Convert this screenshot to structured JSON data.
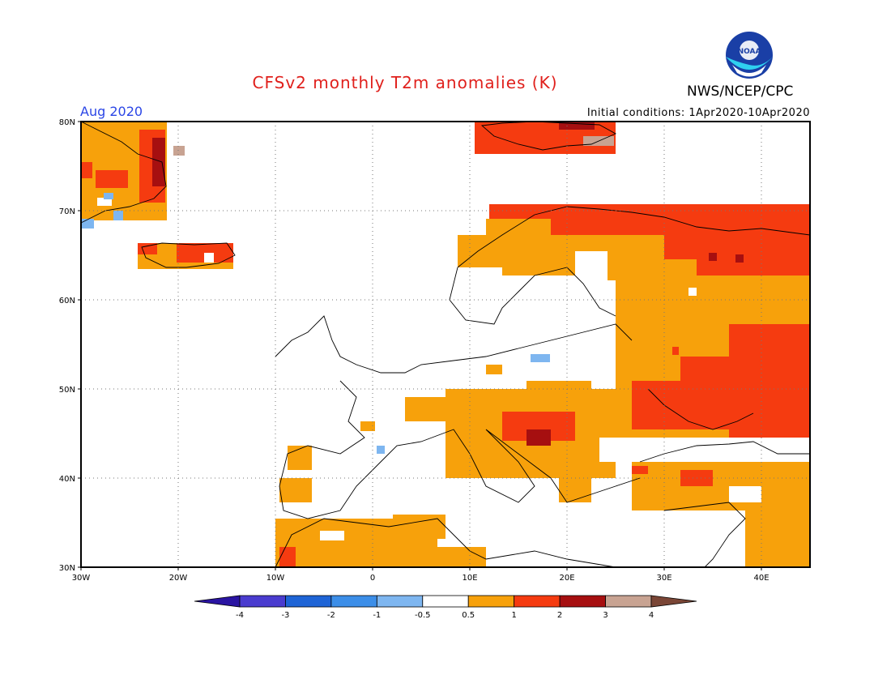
{
  "title": "CFSv2 monthly T2m anomalies (K)",
  "organization": "NWS/NCEP/CPC",
  "logo_text": "NOAA",
  "period": "Aug 2020",
  "initial_conditions": "Initial conditions: 1Apr2020-10Apr2020",
  "lat_labels": [
    "80N",
    "70N",
    "60N",
    "50N",
    "40N",
    "30N"
  ],
  "lon_labels": [
    "30W",
    "20W",
    "10W",
    "0",
    "10E",
    "20E",
    "30E",
    "40E"
  ],
  "colorbar": {
    "colors": [
      "#2a14a2",
      "#4a3ccf",
      "#1e64d6",
      "#3c8ee8",
      "#7eb6f0",
      "#ffffff",
      "#f7a10b",
      "#f53b10",
      "#a60f10",
      "#c8a392",
      "#7a4636"
    ],
    "ticks": [
      "-4",
      "-3",
      "-2",
      "-1",
      "-0.5",
      "0.5",
      "1",
      "2",
      "3",
      "4"
    ]
  },
  "anomaly_classes": {
    "0.5-1": "#f7a10b",
    "1-2": "#f53b10",
    "2-3": "#a60f10",
    "3-4": "#c8a392",
    "-1 to -0.5": "#7eb6f0"
  }
}
